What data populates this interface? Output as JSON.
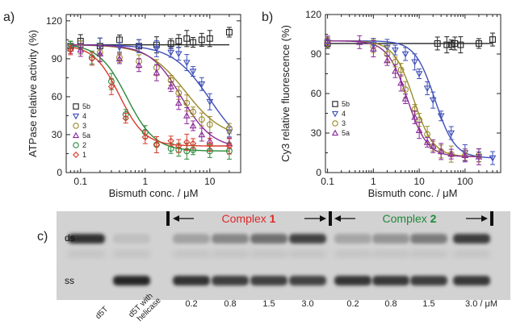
{
  "colors": {
    "5b": "#222222",
    "4": "#3f4fb8",
    "3": "#9a8a2a",
    "5a": "#8a2a9a",
    "2": "#2a8a3a",
    "1": "#d83a2a",
    "complex1": "#e02828",
    "complex2": "#1f8a3a"
  },
  "panels": {
    "a": {
      "label": "a)"
    },
    "b": {
      "label": "b)"
    },
    "c": {
      "label": "c)"
    }
  },
  "chart_data": [
    {
      "panel": "a",
      "type": "scatter",
      "xlabel": "Bismuth conc. / μM",
      "ylabel": "ATPase relative activity (%)",
      "xscale": "log",
      "xlim": [
        0.06,
        30
      ],
      "ylim": [
        0,
        125
      ],
      "xticks": [
        0.1,
        1,
        10
      ],
      "xtick_labels": [
        "0.1",
        "1",
        "10"
      ],
      "yticks": [
        0,
        30,
        60,
        90,
        120
      ],
      "ytick_labels": [
        "0",
        "30",
        "60",
        "90",
        "120"
      ],
      "legend_position": "left",
      "series": [
        {
          "name": "5b",
          "key": "5b",
          "marker": "square",
          "x": [
            0.07,
            0.1,
            0.2,
            0.4,
            0.8,
            1.5,
            2.5,
            3.3,
            4.4,
            5.5,
            7.5,
            10,
            20
          ],
          "y": [
            100,
            104,
            100,
            105,
            100,
            101,
            102,
            104,
            106,
            103,
            105,
            106,
            111
          ],
          "fit": {
            "bottom": 101,
            "top": 101,
            "ic50": 10,
            "hill": 1
          }
        },
        {
          "name": "4",
          "key": "4",
          "marker": "triangle-down",
          "x": [
            0.07,
            0.1,
            0.2,
            0.4,
            0.8,
            1.5,
            2.5,
            3.3,
            4.4,
            5.5,
            7.5,
            10,
            20
          ],
          "y": [
            100,
            99,
            100,
            99,
            100,
            98,
            95,
            94,
            87,
            80,
            70,
            56,
            32
          ],
          "fit": {
            "bottom": 15,
            "top": 101,
            "ic50": 10,
            "hill": 1.5
          }
        },
        {
          "name": "3",
          "key": "3",
          "marker": "circle",
          "x": [
            0.07,
            0.1,
            0.2,
            0.4,
            0.8,
            1.5,
            2.5,
            3.3,
            4.4,
            5.5,
            7.5,
            10,
            20
          ],
          "y": [
            100,
            99,
            95,
            91,
            88,
            83,
            73,
            63,
            55,
            48,
            42,
            38,
            35
          ],
          "fit": {
            "bottom": 27,
            "top": 101,
            "ic50": 4.2,
            "hill": 1.5
          }
        },
        {
          "name": "5a",
          "key": "5a",
          "marker": "triangle-up",
          "x": [
            0.07,
            0.1,
            0.2,
            0.4,
            0.8,
            1.5,
            2.5,
            3.3,
            4.4,
            5.5,
            7.5,
            10,
            20
          ],
          "y": [
            98,
            97,
            94,
            90,
            85,
            79,
            68,
            55,
            45,
            37,
            30,
            25,
            23
          ],
          "fit": {
            "bottom": 19,
            "top": 101,
            "ic50": 3.6,
            "hill": 1.8
          }
        },
        {
          "name": "2",
          "key": "2",
          "marker": "circle",
          "x": [
            0.07,
            0.15,
            0.3,
            0.5,
            1,
            1.5,
            2.5,
            3.3,
            4.4,
            5.5,
            10,
            20
          ],
          "y": [
            100,
            91,
            72,
            46,
            32,
            22,
            19,
            18,
            17,
            18,
            17,
            17
          ],
          "fit": {
            "bottom": 17,
            "top": 102,
            "ic50": 0.52,
            "hill": 2
          }
        },
        {
          "name": "1",
          "key": "1",
          "marker": "diamond",
          "x": [
            0.07,
            0.15,
            0.3,
            0.5,
            1,
            1.5,
            2.5,
            3.3,
            4.4,
            5.5,
            10,
            20
          ],
          "y": [
            97,
            90,
            68,
            43,
            28,
            22,
            25,
            21,
            24,
            23,
            22,
            21
          ],
          "fit": {
            "bottom": 21,
            "top": 101,
            "ic50": 0.4,
            "hill": 2.2
          }
        }
      ]
    },
    {
      "panel": "b",
      "type": "scatter",
      "xlabel": "Bismuth conc. / μM",
      "ylabel": "Cy3 relative fluorescence (%)",
      "xscale": "log",
      "xlim": [
        0.09,
        600
      ],
      "ylim": [
        0,
        120
      ],
      "xticks": [
        0.1,
        1,
        10,
        100
      ],
      "xtick_labels": [
        "0.1",
        "1",
        "10",
        "100"
      ],
      "yticks": [
        0,
        30,
        60,
        90,
        120
      ],
      "ytick_labels": [
        "0",
        "30",
        "60",
        "90",
        "120"
      ],
      "legend_position": "left",
      "series": [
        {
          "name": "5b",
          "key": "5b",
          "marker": "square",
          "x": [
            0.1,
            25,
            40,
            50,
            60,
            80,
            200,
            400
          ],
          "y": [
            98,
            98,
            97,
            97,
            98,
            97,
            98,
            101
          ],
          "fit": {
            "bottom": 98,
            "top": 98,
            "ic50": 10,
            "hill": 1
          }
        },
        {
          "name": "4",
          "key": "4",
          "marker": "triangle-down",
          "x": [
            0.1,
            1,
            2,
            3,
            5,
            8,
            10,
            15,
            20,
            30,
            50,
            100,
            200,
            400
          ],
          "y": [
            99,
            97,
            95,
            93,
            90,
            84,
            75,
            64,
            55,
            43,
            30,
            15,
            12,
            11
          ],
          "fit": {
            "bottom": 11,
            "top": 100,
            "ic50": 22,
            "hill": 2
          }
        },
        {
          "name": "3",
          "key": "3",
          "marker": "circle",
          "x": [
            0.1,
            1,
            2,
            3,
            4,
            5,
            8,
            10,
            15,
            20,
            30,
            50,
            100,
            200
          ],
          "y": [
            99,
            96,
            90,
            84,
            78,
            63,
            48,
            40,
            29,
            20,
            16,
            14,
            13,
            13
          ],
          "fit": {
            "bottom": 12,
            "top": 100,
            "ic50": 7.5,
            "hill": 2
          }
        },
        {
          "name": "5a",
          "key": "5a",
          "marker": "triangle-up",
          "x": [
            0.1,
            0.5,
            1,
            2,
            3,
            4,
            5,
            8,
            10,
            15,
            20,
            30,
            50,
            100,
            200
          ],
          "y": [
            100,
            99,
            94,
            85,
            77,
            68,
            56,
            42,
            32,
            23,
            20,
            16,
            14,
            13,
            12
          ],
          "fit": {
            "bottom": 12,
            "top": 100,
            "ic50": 5.5,
            "hill": 2
          }
        }
      ]
    }
  ],
  "gel": {
    "band_labels": {
      "ds": "ds",
      "ss": "ss"
    },
    "complex1": {
      "prefix": "Complex ",
      "number": "1"
    },
    "complex2": {
      "prefix": "Complex ",
      "number": "2"
    },
    "lane_labels": [
      "0.2",
      "0.8",
      "1.5",
      "3.0",
      "0.2",
      "0.8",
      "1.5",
      "3.0 / μM"
    ],
    "control_labels": [
      "d5T",
      "d5T with",
      "helicase"
    ],
    "lanes": [
      {
        "ds": 0.88,
        "ss": 0.02
      },
      {
        "ds": 0.05,
        "ss": 0.92
      },
      {
        "ds": 0.22,
        "ss": 0.86
      },
      {
        "ds": 0.38,
        "ss": 0.8
      },
      {
        "ds": 0.52,
        "ss": 0.78
      },
      {
        "ds": 0.78,
        "ss": 0.76
      },
      {
        "ds": 0.2,
        "ss": 0.84
      },
      {
        "ds": 0.3,
        "ss": 0.82
      },
      {
        "ds": 0.45,
        "ss": 0.8
      },
      {
        "ds": 0.82,
        "ss": 0.82
      }
    ]
  }
}
